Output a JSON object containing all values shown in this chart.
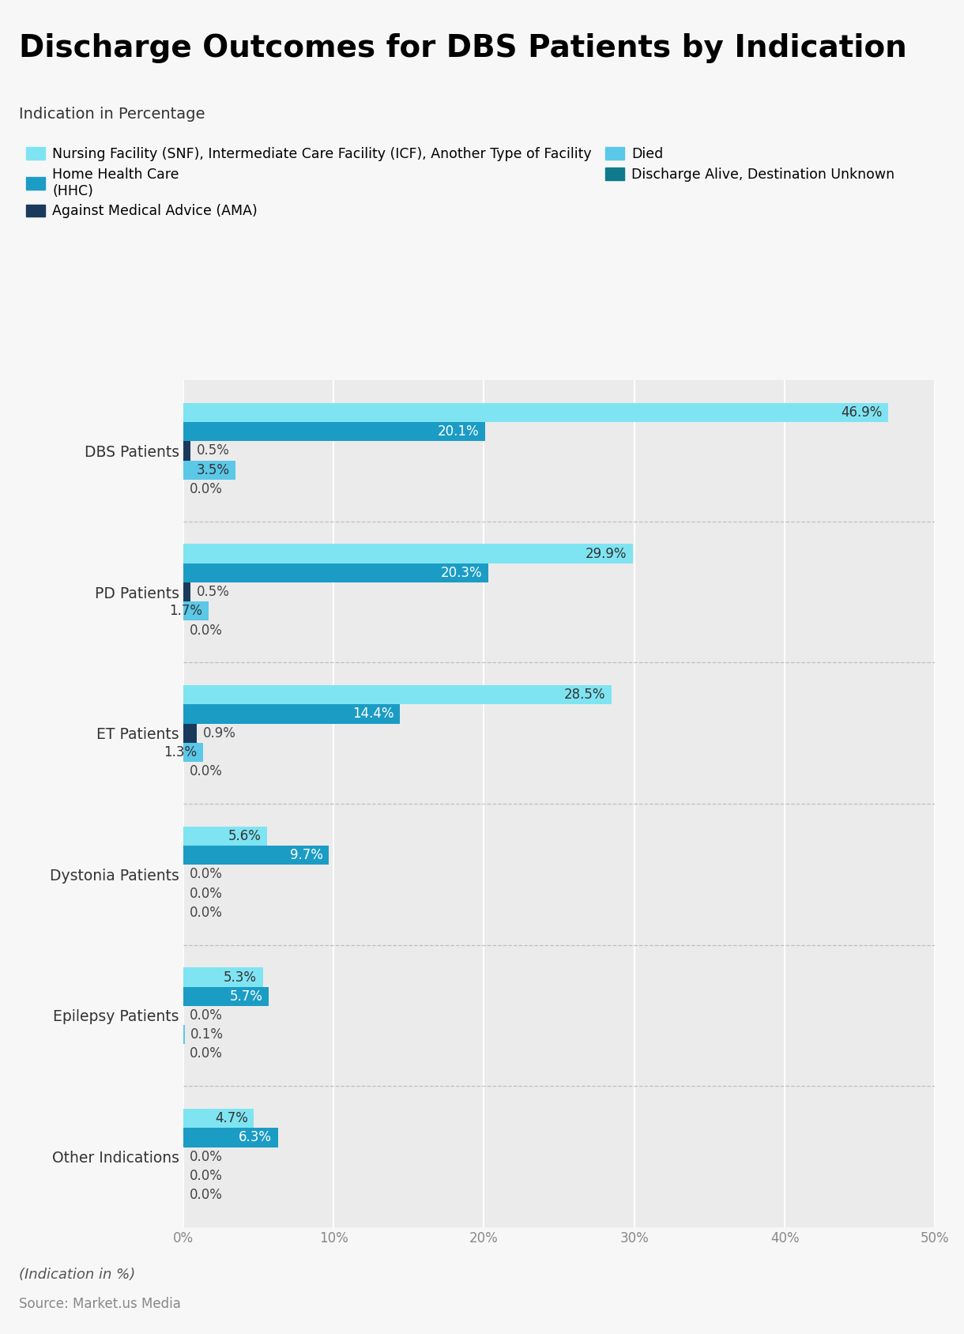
{
  "title": "Discharge Outcomes for DBS Patients by Indication",
  "subtitle": "Indication in Percentage",
  "footer_line1": "(Indication in %)",
  "footer_line2": "Source: Market.us Media",
  "categories": [
    "Other Indications",
    "Epilepsy Patients",
    "Dystonia Patients",
    "ET Patients",
    "PD Patients",
    "DBS Patients"
  ],
  "series": [
    {
      "name": "Nursing Facility (SNF), Intermediate Care Facility (ICF), Another Type of Facility",
      "short_name": "SNF",
      "color": "#7FE4F2",
      "label_color": "#333333",
      "values": [
        4.7,
        5.3,
        5.6,
        28.5,
        29.9,
        46.9
      ]
    },
    {
      "name": "Home Health Care\n(HHC)",
      "short_name": "HHC",
      "color": "#1B9CC4",
      "label_color": "#ffffff",
      "values": [
        6.3,
        5.7,
        9.7,
        14.4,
        20.3,
        20.1
      ]
    },
    {
      "name": "Against Medical Advice (AMA)",
      "short_name": "AMA",
      "color": "#1A3A5C",
      "label_color": "#333333",
      "values": [
        0.0,
        0.0,
        0.0,
        0.9,
        0.5,
        0.5
      ]
    },
    {
      "name": "Died",
      "short_name": "Died",
      "color": "#5BC8E8",
      "label_color": "#333333",
      "values": [
        0.0,
        0.1,
        0.0,
        1.3,
        1.7,
        3.5
      ]
    },
    {
      "name": "Discharge Alive, Destination Unknown",
      "short_name": "Unknown",
      "color": "#0E7A8C",
      "label_color": "#333333",
      "values": [
        0.0,
        0.0,
        0.0,
        0.0,
        0.0,
        0.0
      ]
    }
  ],
  "xlim": [
    0,
    50
  ],
  "xticks": [
    0,
    10,
    20,
    30,
    40,
    50
  ],
  "xticklabels": [
    "0%",
    "10%",
    "20%",
    "30%",
    "40%",
    "50%"
  ],
  "background_color": "#F7F7F7",
  "plot_bg_color": "#EBEBEB",
  "title_fontsize": 28,
  "subtitle_fontsize": 14,
  "legend_fontsize": 12.5,
  "bar_label_fontsize": 12,
  "ytick_fontsize": 13.5,
  "xtick_fontsize": 12
}
